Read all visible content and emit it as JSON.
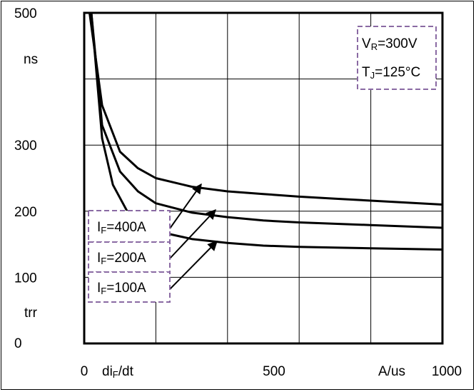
{
  "chart_data": {
    "type": "line",
    "title": "",
    "xlabel": "di_F/dt",
    "ylabel": "trr",
    "x_unit": "A/us",
    "y_unit": "ns",
    "xlim": [
      0,
      1000
    ],
    "ylim": [
      0,
      500
    ],
    "x_tick_labels": [
      "0",
      "500",
      "1000"
    ],
    "y_tick_labels": [
      "0",
      "100",
      "200",
      "300",
      "500"
    ],
    "grid": true,
    "conditions": [
      {
        "main": "V",
        "sub": "R",
        "rest": "=300V"
      },
      {
        "main": "T",
        "sub": "J",
        "rest": "=125°C"
      }
    ],
    "series": [
      {
        "name": "IF=400A",
        "label_main": "I",
        "label_sub": "F",
        "label_rest": "=400A",
        "x": [
          15,
          50,
          100,
          150,
          200,
          300,
          400,
          500,
          600,
          700,
          800,
          900,
          1000
        ],
        "y": [
          500,
          360,
          290,
          265,
          250,
          237,
          230,
          226,
          222,
          219,
          216,
          213,
          210
        ]
      },
      {
        "name": "IF=200A",
        "label_main": "I",
        "label_sub": "F",
        "label_rest": "=200A",
        "x": [
          20,
          50,
          100,
          150,
          200,
          300,
          400,
          500,
          600,
          700,
          800,
          900,
          1000
        ],
        "y": [
          500,
          330,
          260,
          230,
          212,
          198,
          191,
          186,
          183,
          181,
          179,
          177,
          175
        ]
      },
      {
        "name": "IF=100A",
        "label_main": "I",
        "label_sub": "F",
        "label_rest": "=100A",
        "x": [
          20,
          50,
          80,
          120,
          160,
          200,
          300,
          400,
          500,
          600,
          700,
          800,
          900,
          1000
        ],
        "y": [
          500,
          310,
          240,
          200,
          180,
          170,
          158,
          152,
          148,
          146,
          145,
          144,
          143,
          142
        ]
      }
    ]
  }
}
